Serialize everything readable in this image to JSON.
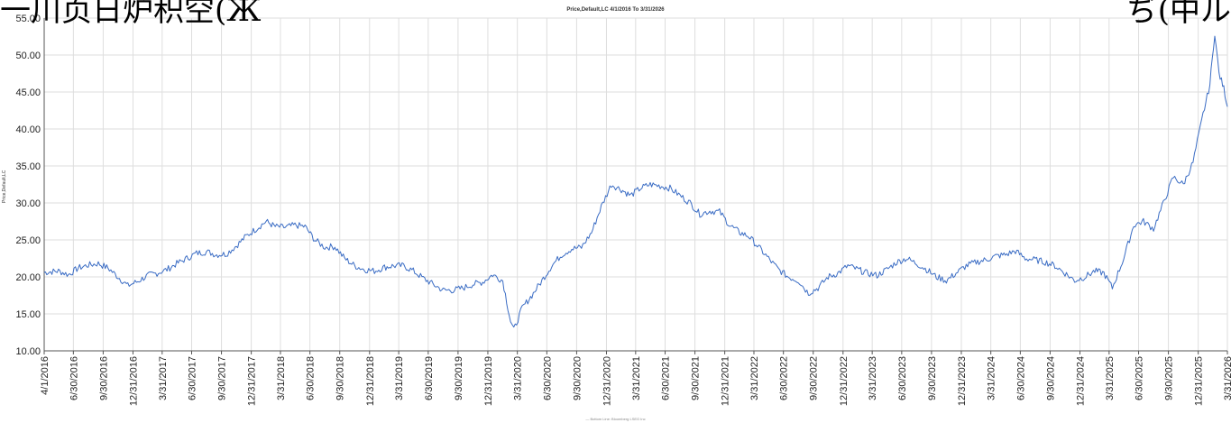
{
  "header": {
    "cut_left": "一川页日炉积空(Ж",
    "cut_right": "ぢ(中ル",
    "footnote": "— Bottom Line: Bloomberg LSEG Inc"
  },
  "colors": {
    "line": "#3a6cc4",
    "grid": "#dedede",
    "axis": "#555555"
  },
  "chart_data": {
    "type": "line",
    "title": "Price,Default,LC 4/1/2016 To 3/31/2026",
    "ylabel": "Price,Default,LC",
    "xlabel": "",
    "ylim": [
      10,
      55
    ],
    "xlim": [
      "2016-04-01",
      "2026-03-31"
    ],
    "yticks": [
      "10.00",
      "15.00",
      "20.00",
      "25.00",
      "30.00",
      "35.00",
      "40.00",
      "45.00",
      "50.00",
      "55.00"
    ],
    "xticks": [
      "4/1/2016",
      "6/30/2016",
      "9/30/2016",
      "12/31/2016",
      "3/31/2017",
      "6/30/2017",
      "9/30/2017",
      "12/31/2017",
      "3/31/2018",
      "6/30/2018",
      "9/30/2018",
      "12/31/2018",
      "3/31/2019",
      "6/30/2019",
      "9/30/2019",
      "12/31/2019",
      "3/31/2020",
      "6/30/2020",
      "9/30/2020",
      "12/31/2020",
      "3/31/2021",
      "6/30/2021",
      "9/30/2021",
      "12/31/2021",
      "3/31/2022",
      "6/30/2022",
      "9/30/2022",
      "12/31/2022",
      "3/31/2023",
      "6/30/2023",
      "9/30/2023",
      "12/31/2023",
      "3/31/2024",
      "6/30/2024",
      "9/30/2024",
      "12/31/2024",
      "3/31/2025",
      "6/30/2025",
      "9/30/2025",
      "12/31/2025",
      "3/31/2026"
    ],
    "grid": true,
    "legend": "none",
    "series": [
      {
        "x": [
          "2016-04-01",
          "2016-05-15",
          "2016-06-15",
          "2016-07-15",
          "2016-08-15",
          "2016-09-15",
          "2016-10-15",
          "2016-11-15",
          "2016-12-15",
          "2017-01-15",
          "2017-02-15",
          "2017-03-15",
          "2017-04-15",
          "2017-05-15",
          "2017-06-15",
          "2017-07-15",
          "2017-08-15",
          "2017-09-15",
          "2017-10-15",
          "2017-11-15",
          "2017-12-15",
          "2018-01-15",
          "2018-02-15",
          "2018-03-15",
          "2018-04-15",
          "2018-05-15",
          "2018-06-15",
          "2018-07-15",
          "2018-08-15",
          "2018-09-15",
          "2018-10-15",
          "2018-11-15",
          "2018-12-15",
          "2019-01-15",
          "2019-02-15",
          "2019-03-15",
          "2019-04-15",
          "2019-05-15",
          "2019-06-15",
          "2019-07-15",
          "2019-08-15",
          "2019-09-15",
          "2019-10-15",
          "2019-11-15",
          "2019-12-15",
          "2020-01-15",
          "2020-02-15",
          "2020-03-10",
          "2020-03-20",
          "2020-04-15",
          "2020-05-15",
          "2020-06-15",
          "2020-07-15",
          "2020-08-15",
          "2020-09-15",
          "2020-10-15",
          "2020-11-15",
          "2020-12-15",
          "2021-01-15",
          "2021-02-15",
          "2021-03-15",
          "2021-04-15",
          "2021-05-15",
          "2021-06-15",
          "2021-07-15",
          "2021-08-15",
          "2021-09-15",
          "2021-10-15",
          "2021-11-15",
          "2021-12-15",
          "2022-01-15",
          "2022-02-15",
          "2022-03-15",
          "2022-04-15",
          "2022-05-15",
          "2022-06-15",
          "2022-07-15",
          "2022-08-15",
          "2022-09-15",
          "2022-10-15",
          "2022-11-15",
          "2022-12-15",
          "2023-01-15",
          "2023-02-15",
          "2023-03-15",
          "2023-04-15",
          "2023-05-15",
          "2023-06-15",
          "2023-07-15",
          "2023-08-15",
          "2023-09-15",
          "2023-10-15",
          "2023-11-15",
          "2023-12-15",
          "2024-01-15",
          "2024-02-15",
          "2024-03-15",
          "2024-04-15",
          "2024-05-15",
          "2024-06-15",
          "2024-07-15",
          "2024-08-15",
          "2024-09-15",
          "2024-10-15",
          "2024-11-15",
          "2024-12-15",
          "2025-01-15",
          "2025-02-15",
          "2025-03-15",
          "2025-04-10",
          "2025-05-15",
          "2025-06-15",
          "2025-07-15",
          "2025-08-15",
          "2025-09-15",
          "2025-10-15",
          "2025-11-15",
          "2025-12-15",
          "2026-01-15",
          "2026-02-05",
          "2026-02-20",
          "2026-03-05",
          "2026-03-20",
          "2026-03-31"
        ],
        "y": [
          20.6,
          20.8,
          20.3,
          21.2,
          21.6,
          21.8,
          21.2,
          20.0,
          18.8,
          19.4,
          20.2,
          20.5,
          21.0,
          21.8,
          22.5,
          23.2,
          23.4,
          23.0,
          23.1,
          24.2,
          25.5,
          26.5,
          27.5,
          26.8,
          26.7,
          27.0,
          26.8,
          25.0,
          24.0,
          24.1,
          22.5,
          21.5,
          21.0,
          20.8,
          21.3,
          21.5,
          21.5,
          20.8,
          19.8,
          19.0,
          18.2,
          18.2,
          18.5,
          19.0,
          19.3,
          20.3,
          19.5,
          14.0,
          12.8,
          15.8,
          17.5,
          19.5,
          21.5,
          23.0,
          23.8,
          24.0,
          26.0,
          29.5,
          32.5,
          31.8,
          31.0,
          32.0,
          32.5,
          32.3,
          32.0,
          31.0,
          30.0,
          28.5,
          28.9,
          28.8,
          27.0,
          26.0,
          25.5,
          24.0,
          22.5,
          21.0,
          20.0,
          19.5,
          17.8,
          18.5,
          20.0,
          20.5,
          21.5,
          21.0,
          20.5,
          20.2,
          21.0,
          22.0,
          22.5,
          21.8,
          21.0,
          20.0,
          19.5,
          20.5,
          21.5,
          22.0,
          22.3,
          22.8,
          23.0,
          23.5,
          22.5,
          22.3,
          22.0,
          21.5,
          20.5,
          19.5,
          20.0,
          20.8,
          20.5,
          18.5,
          22.5,
          27.0,
          27.5,
          26.5,
          30.0,
          33.5,
          32.5,
          35.5,
          42.0,
          46.0,
          53.0,
          47.5,
          45.5,
          43.0
        ]
      }
    ]
  }
}
